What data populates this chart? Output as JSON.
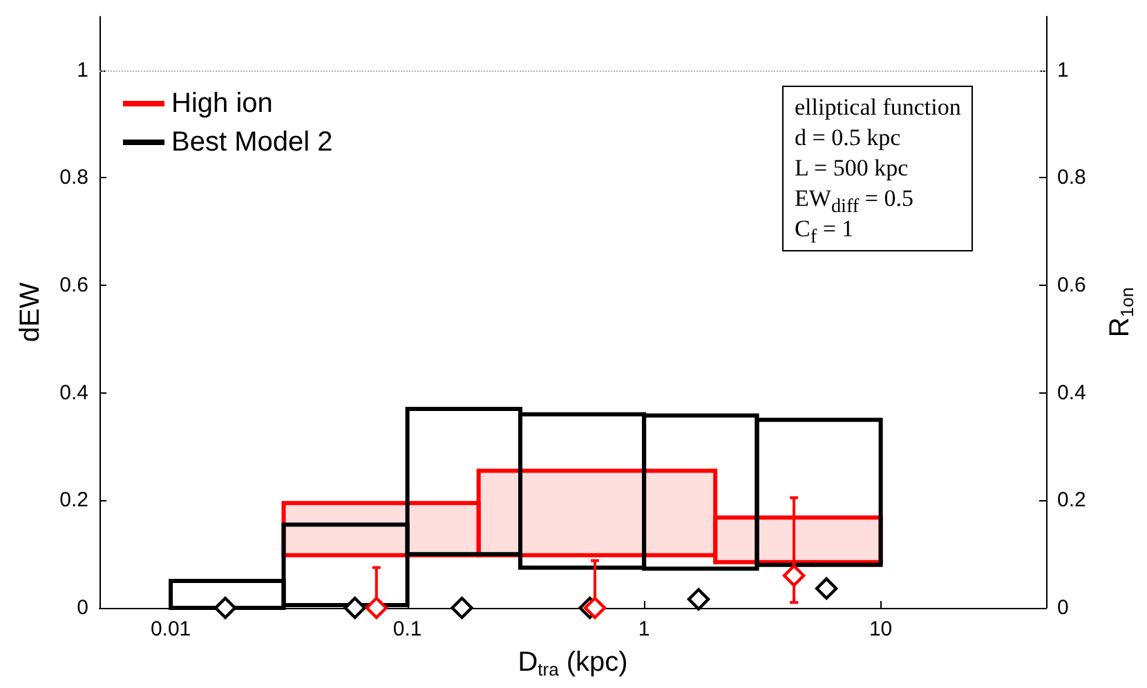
{
  "chart_data": {
    "type": "histogram",
    "xlabel": "D$_{tra}$ (kpc)",
    "ylabel": "dEW",
    "y2label": "R$_{1on}$",
    "log": "x",
    "xlim": [
      0.005,
      50
    ],
    "xticks": [
      0.01,
      0.1,
      1,
      10
    ],
    "ylim": [
      0,
      1.1
    ],
    "yticks": [
      0,
      0.2,
      0.4,
      0.6,
      0.8,
      1
    ],
    "y2lim": [
      0,
      1.1
    ],
    "y2ticks": [
      0,
      0.2,
      0.4,
      0.6,
      0.8,
      1
    ],
    "grid": false,
    "legend": "top left",
    "ref_lines": [
      {
        "axis": "y",
        "value": 1,
        "line_style": "dotted",
        "color": "#b0b0b0"
      }
    ],
    "annotations": [
      "elliptical function",
      "d = 0.5 kpc",
      "L = 500 kpc",
      "EW$_{diff}$ = 0.5",
      "C$_{f}$ = 1"
    ],
    "series": [
      {
        "name": "High ion",
        "color": "#ff0000",
        "bins": [
          0.03,
          0.2,
          2,
          10
        ],
        "base": [
          0.098,
          0.098,
          0.085
        ],
        "values": [
          0.097,
          0.157,
          0.083
        ]
      },
      {
        "name": "Best Model 2",
        "color": "#000000",
        "bins": [
          0.01,
          0.03,
          0.1,
          0.3,
          1,
          3,
          10
        ],
        "base": [
          0,
          0.005,
          0.1,
          0.075,
          0.073,
          0.08
        ],
        "values": [
          0.05,
          0.15,
          0.27,
          0.285,
          0.285,
          0.27
        ]
      },
      {
        "type": "scatter",
        "color": "#000000",
        "marker": "diamond",
        "x": [
          0.017,
          0.06,
          0.17,
          0.59,
          1.7,
          5.9
        ],
        "values": [
          0,
          0,
          0,
          0,
          0.016,
          0.036
        ]
      },
      {
        "type": "scatter",
        "color": "#ff0000",
        "marker": "diamond",
        "x": [
          0.074,
          0.62,
          4.3
        ],
        "values": [
          0,
          0,
          0.06
        ],
        "errors": [
          [
            0,
            0.075
          ],
          [
            0,
            0.088
          ],
          [
            0.01,
            0.205
          ]
        ]
      }
    ]
  }
}
